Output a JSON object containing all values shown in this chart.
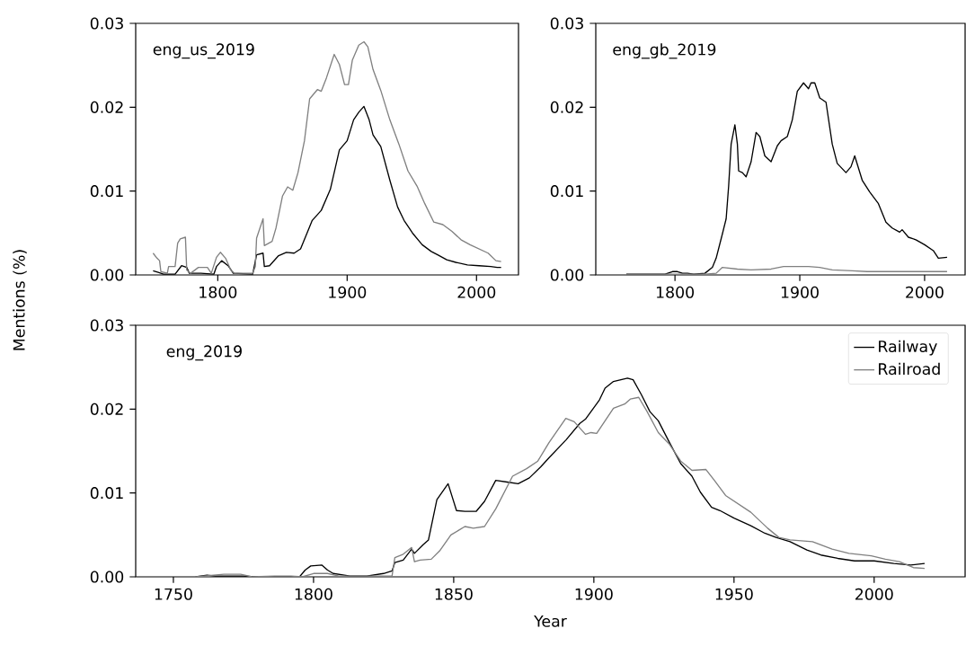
{
  "chart_data": [
    {
      "type": "line",
      "annotations": [
        "eng_us_2019"
      ],
      "ylabel": "Mentions (%)",
      "xlim": [
        1736.55,
        2032.45
      ],
      "ylim": [
        0,
        0.03
      ],
      "xticks": [
        1800,
        1900,
        2000
      ],
      "yticks": [
        {
          "value": 0,
          "label": "0.00"
        },
        {
          "value": 0.01,
          "label": "0.01"
        },
        {
          "value": 0.02,
          "label": "0.02"
        },
        {
          "value": 0.03,
          "label": "0.03"
        }
      ],
      "line_style": "solid",
      "series": [
        {
          "color": "#000000",
          "x": [
            1750,
            1754,
            1758,
            1767,
            1772,
            1776,
            1778,
            1787,
            1797,
            1799,
            1803,
            1808,
            1812,
            1827,
            1830,
            1835,
            1836,
            1840,
            1847,
            1853,
            1859,
            1864,
            1873,
            1880,
            1887,
            1894,
            1900,
            1905,
            1909,
            1913,
            1917,
            1920,
            1926,
            1933,
            1939,
            1944,
            1951,
            1958,
            1965,
            1970,
            1977,
            1984,
            1993,
            2002,
            2011,
            2016,
            2019
          ],
          "values": [
            0.0005,
            0.0003,
            0.0001,
            0.0001,
            0.0011,
            0.0009,
            0.0002,
            0.0002,
            0.0001,
            0.001,
            0.0017,
            0.0011,
            0.0002,
            0.0001,
            0.0024,
            0.0026,
            0.001,
            0.0011,
            0.0023,
            0.0027,
            0.0026,
            0.0031,
            0.0065,
            0.0077,
            0.0102,
            0.0149,
            0.016,
            0.0185,
            0.0194,
            0.0201,
            0.0185,
            0.0167,
            0.0153,
            0.0113,
            0.0081,
            0.0065,
            0.0049,
            0.0036,
            0.0028,
            0.0024,
            0.0018,
            0.0015,
            0.0012,
            0.0011,
            0.001,
            0.0009,
            0.0009
          ]
        },
        {
          "color": "#808080",
          "x": [
            1750,
            1753,
            1755,
            1756,
            1761,
            1762,
            1767,
            1769,
            1771,
            1775,
            1776,
            1779,
            1785,
            1792,
            1795,
            1799,
            1802,
            1806,
            1810,
            1813,
            1827,
            1829,
            1830,
            1835,
            1836,
            1842,
            1845,
            1850,
            1854,
            1858,
            1862,
            1867,
            1871,
            1877,
            1880,
            1884,
            1890,
            1894,
            1898,
            1901,
            1904,
            1909,
            1913,
            1916,
            1920,
            1926,
            1933,
            1940,
            1947,
            1954,
            1960,
            1967,
            1974,
            1981,
            1988,
            1995,
            2002,
            2009,
            2015,
            2019
          ],
          "values": [
            0.0026,
            0.002,
            0.0017,
            0.0004,
            0.0002,
            0.001,
            0.001,
            0.0038,
            0.0043,
            0.0045,
            0.0006,
            0.0002,
            0.0009,
            0.0009,
            0.0002,
            0.0021,
            0.0027,
            0.002,
            0.0006,
            0.0002,
            0.0002,
            0.001,
            0.0044,
            0.0067,
            0.0035,
            0.004,
            0.0056,
            0.0094,
            0.0105,
            0.0101,
            0.0122,
            0.016,
            0.021,
            0.0221,
            0.0219,
            0.0235,
            0.0263,
            0.0251,
            0.0227,
            0.0227,
            0.0256,
            0.0274,
            0.0278,
            0.0272,
            0.0245,
            0.022,
            0.0185,
            0.0156,
            0.0124,
            0.0106,
            0.0085,
            0.0063,
            0.006,
            0.0052,
            0.0042,
            0.0036,
            0.0031,
            0.0026,
            0.0017,
            0.0016
          ]
        }
      ]
    },
    {
      "type": "line",
      "annotations": [
        "eng_gb_2019"
      ],
      "xlim": [
        1736.55,
        2032.45
      ],
      "ylim": [
        0,
        0.03
      ],
      "xticks": [
        1800,
        1900,
        2000
      ],
      "yticks": [
        {
          "value": 0,
          "label": "0.00"
        },
        {
          "value": 0.01,
          "label": "0.01"
        },
        {
          "value": 0.02,
          "label": "0.02"
        },
        {
          "value": 0.03,
          "label": "0.03"
        }
      ],
      "line_style": "solid",
      "series": [
        {
          "color": "#000000",
          "x": [
            1761,
            1773,
            1792,
            1798,
            1802,
            1806,
            1810,
            1815,
            1824,
            1830,
            1833,
            1838,
            1841,
            1843,
            1845,
            1848,
            1850,
            1851,
            1854,
            1857,
            1861,
            1865,
            1868,
            1872,
            1877,
            1882,
            1885,
            1890,
            1894,
            1898,
            1903,
            1907,
            1909,
            1912,
            1916,
            1921,
            1926,
            1930,
            1937,
            1941,
            1944,
            1950,
            1956,
            1963,
            1969,
            1974,
            1980,
            1982,
            1987,
            1993,
            2000,
            2007,
            2011,
            2018
          ],
          "values": [
            0.0001,
            0.0001,
            0.0001,
            0.0004,
            0.0004,
            0.0002,
            0.0002,
            0.0001,
            0.0002,
            0.0009,
            0.002,
            0.0049,
            0.0067,
            0.0106,
            0.0156,
            0.0179,
            0.0156,
            0.0124,
            0.0122,
            0.0117,
            0.0135,
            0.017,
            0.0165,
            0.0142,
            0.0135,
            0.0154,
            0.016,
            0.0165,
            0.0185,
            0.0219,
            0.0229,
            0.0222,
            0.0229,
            0.0229,
            0.0211,
            0.0206,
            0.0156,
            0.0133,
            0.0122,
            0.0129,
            0.0142,
            0.0113,
            0.0099,
            0.0085,
            0.0063,
            0.0056,
            0.0051,
            0.0054,
            0.0045,
            0.0042,
            0.0036,
            0.0029,
            0.002,
            0.0021
          ]
        },
        {
          "color": "#808080",
          "x": [
            1761,
            1792,
            1824,
            1833,
            1838,
            1850,
            1861,
            1877,
            1887,
            1907,
            1916,
            1926,
            1942,
            1954,
            1977,
            2000,
            2018
          ],
          "values": [
            0.0001,
            0.0001,
            0.0001,
            0.0002,
            0.0009,
            0.0007,
            0.0006,
            0.0007,
            0.001,
            0.001,
            0.0009,
            0.0006,
            0.0005,
            0.0004,
            0.0004,
            0.0004,
            0.0004
          ]
        }
      ]
    },
    {
      "type": "line",
      "annotations": [
        "eng_2019"
      ],
      "xlabel": "Year",
      "xlim": [
        1736.55,
        2032.45
      ],
      "ylim": [
        0,
        0.03
      ],
      "xticks": [
        1750,
        1800,
        1850,
        1900,
        1950,
        2000
      ],
      "yticks": [
        {
          "value": 0,
          "label": "0.00"
        },
        {
          "value": 0.01,
          "label": "0.01"
        },
        {
          "value": 0.02,
          "label": "0.02"
        },
        {
          "value": 0.03,
          "label": "0.03"
        }
      ],
      "line_style": "solid",
      "legend": "top right",
      "series": [
        {
          "name": "Railway",
          "color": "#000000",
          "x": [
            1758,
            1762,
            1765,
            1775,
            1779,
            1795,
            1797,
            1799,
            1803,
            1805,
            1807,
            1811,
            1813,
            1819,
            1825,
            1828,
            1829,
            1832,
            1835,
            1836,
            1839,
            1841,
            1844,
            1848,
            1851,
            1854,
            1858,
            1861,
            1865,
            1869,
            1873,
            1877,
            1881,
            1884,
            1890,
            1895,
            1897,
            1902,
            1904,
            1907,
            1912,
            1914,
            1917,
            1920,
            1923,
            1927,
            1931,
            1935,
            1938,
            1942,
            1945,
            1950,
            1956,
            1961,
            1965,
            1970,
            1976,
            1981,
            1987,
            1993,
            2000,
            2007,
            2013,
            2018
          ],
          "values": [
            0,
            0.0002,
            0.0001,
            0.0001,
            0,
            0,
            0.0008,
            0.0013,
            0.0014,
            0.0008,
            0.0004,
            0.0002,
            0.0001,
            0.0001,
            0.0004,
            0.0007,
            0.0017,
            0.002,
            0.0033,
            0.0028,
            0.0038,
            0.0044,
            0.0092,
            0.0111,
            0.0079,
            0.0078,
            0.0078,
            0.009,
            0.0115,
            0.0113,
            0.0111,
            0.0118,
            0.0131,
            0.0142,
            0.0163,
            0.0183,
            0.0188,
            0.0211,
            0.0225,
            0.0233,
            0.0237,
            0.0235,
            0.0217,
            0.0197,
            0.0186,
            0.016,
            0.0135,
            0.012,
            0.0101,
            0.0083,
            0.0079,
            0.007,
            0.0061,
            0.0052,
            0.0047,
            0.0042,
            0.0032,
            0.0026,
            0.0022,
            0.0019,
            0.0019,
            0.0016,
            0.0014,
            0.0016
          ]
        },
        {
          "name": "Railroad",
          "color": "#808080",
          "x": [
            1758,
            1768,
            1774,
            1778,
            1786,
            1792,
            1796,
            1800,
            1805,
            1809,
            1828,
            1829,
            1832,
            1835,
            1836,
            1838,
            1842,
            1845,
            1849,
            1854,
            1857,
            1861,
            1865,
            1871,
            1876,
            1880,
            1884,
            1890,
            1893,
            1897,
            1899,
            1901,
            1904,
            1907,
            1911,
            1913,
            1916,
            1919,
            1923,
            1927,
            1931,
            1935,
            1940,
            1943,
            1947,
            1956,
            1962,
            1966,
            1970,
            1978,
            1985,
            1991,
            1999,
            2004,
            2009,
            2014,
            2018
          ],
          "values": [
            0,
            0.0003,
            0.0003,
            0,
            0.0001,
            0.0001,
            0,
            0.0004,
            0.0004,
            0.0001,
            0.0001,
            0.0023,
            0.0027,
            0.0035,
            0.0018,
            0.002,
            0.0021,
            0.0031,
            0.005,
            0.006,
            0.0058,
            0.006,
            0.0081,
            0.012,
            0.0129,
            0.0138,
            0.016,
            0.0189,
            0.0185,
            0.017,
            0.0172,
            0.0171,
            0.0186,
            0.0201,
            0.0206,
            0.0212,
            0.0214,
            0.0197,
            0.0172,
            0.0158,
            0.0138,
            0.0127,
            0.0128,
            0.0115,
            0.0097,
            0.0077,
            0.0058,
            0.0047,
            0.0044,
            0.0042,
            0.0033,
            0.0028,
            0.0025,
            0.0021,
            0.0018,
            0.0011,
            0.001
          ]
        }
      ]
    }
  ]
}
